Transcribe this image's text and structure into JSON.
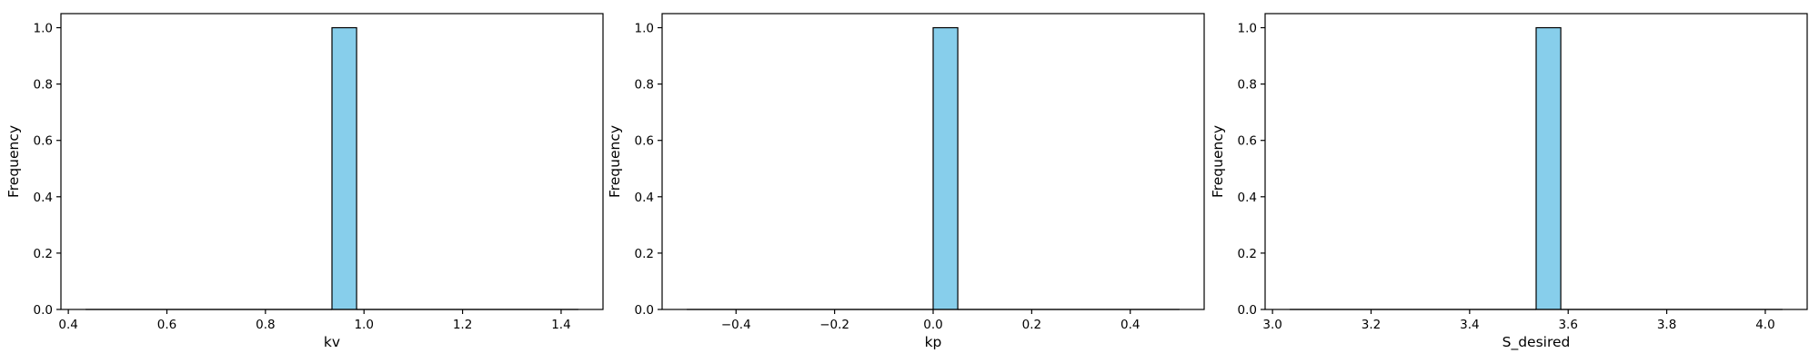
{
  "chart_data": [
    {
      "type": "bar",
      "xlabel": "kv",
      "ylabel": "Frequency",
      "xlim": [
        0.385,
        1.485
      ],
      "ylim": [
        0,
        1.05
      ],
      "xticks": [
        "0.4",
        "0.6",
        "0.8",
        "1.0",
        "1.2",
        "1.4"
      ],
      "xtick_values": [
        0.4,
        0.6,
        0.8,
        1.0,
        1.2,
        1.4
      ],
      "yticks": [
        "0.0",
        "0.2",
        "0.4",
        "0.6",
        "0.8",
        "1.0"
      ],
      "ytick_values": [
        0.0,
        0.2,
        0.4,
        0.6,
        0.8,
        1.0
      ],
      "bins": {
        "start": 0.435,
        "end": 1.435,
        "count": 20
      },
      "values": [
        0,
        0,
        0,
        0,
        0,
        0,
        0,
        0,
        0,
        0,
        1,
        0,
        0,
        0,
        0,
        0,
        0,
        0,
        0,
        0
      ],
      "grid": false
    },
    {
      "type": "bar",
      "xlabel": "kp",
      "ylabel": "Frequency",
      "xlim": [
        -0.55,
        0.55
      ],
      "ylim": [
        0,
        1.05
      ],
      "xticks": [
        "−0.4",
        "−0.2",
        "0.0",
        "0.2",
        "0.4"
      ],
      "xtick_values": [
        -0.4,
        -0.2,
        0.0,
        0.2,
        0.4
      ],
      "yticks": [
        "0.0",
        "0.2",
        "0.4",
        "0.6",
        "0.8",
        "1.0"
      ],
      "ytick_values": [
        0.0,
        0.2,
        0.4,
        0.6,
        0.8,
        1.0
      ],
      "bins": {
        "start": -0.5,
        "end": 0.5,
        "count": 20
      },
      "values": [
        0,
        0,
        0,
        0,
        0,
        0,
        0,
        0,
        0,
        0,
        1,
        0,
        0,
        0,
        0,
        0,
        0,
        0,
        0,
        0
      ],
      "grid": false
    },
    {
      "type": "bar",
      "xlabel": "S_desired",
      "ylabel": "Frequency",
      "xlim": [
        2.985,
        4.085
      ],
      "ylim": [
        0,
        1.05
      ],
      "xticks": [
        "3.0",
        "3.2",
        "3.4",
        "3.6",
        "3.8",
        "4.0"
      ],
      "xtick_values": [
        3.0,
        3.2,
        3.4,
        3.6,
        3.8,
        4.0
      ],
      "yticks": [
        "0.0",
        "0.2",
        "0.4",
        "0.6",
        "0.8",
        "1.0"
      ],
      "ytick_values": [
        0.0,
        0.2,
        0.4,
        0.6,
        0.8,
        1.0
      ],
      "bins": {
        "start": 3.035,
        "end": 4.035,
        "count": 20
      },
      "values": [
        0,
        0,
        0,
        0,
        0,
        0,
        0,
        0,
        0,
        0,
        1,
        0,
        0,
        0,
        0,
        0,
        0,
        0,
        0,
        0
      ],
      "grid": false
    }
  ],
  "colors": {
    "bar_fill": "#87ceeb",
    "bar_edge": "#000000",
    "axis": "#000000",
    "background": "#ffffff"
  }
}
